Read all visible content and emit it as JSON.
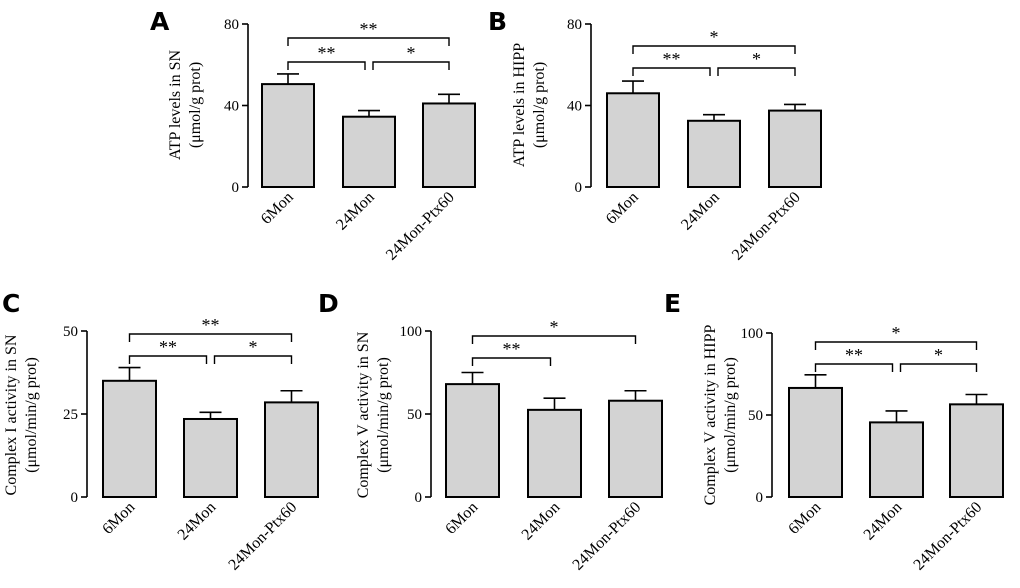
{
  "chart_data": [
    {
      "type": "bar",
      "panel": "A",
      "ylabel": [
        "ATP levels in SN",
        "(μmol/g prot)"
      ],
      "categories": [
        "6Mon",
        "24Mon",
        "24Mon-Ptx60"
      ],
      "values": [
        50.5,
        34.5,
        41
      ],
      "errors": [
        5,
        3,
        4.5
      ],
      "ylim": [
        0,
        80
      ],
      "yticks": [
        "0",
        "40",
        "80"
      ],
      "ytick_values": [
        0,
        40,
        80
      ],
      "significance": [
        {
          "from": 0,
          "to": 2,
          "label": "**",
          "level": 1
        },
        {
          "from": 0,
          "to": 1,
          "label": "**",
          "level": 0
        },
        {
          "from": 1,
          "to": 2,
          "label": "*",
          "level": 0
        }
      ]
    },
    {
      "type": "bar",
      "panel": "B",
      "ylabel": [
        "ATP levels in HIPP",
        "(μmol/g prot)"
      ],
      "categories": [
        "6Mon",
        "24Mon",
        "24Mon-Ptx60"
      ],
      "values": [
        46,
        32.5,
        37.5
      ],
      "errors": [
        6,
        3,
        3
      ],
      "ylim": [
        0,
        80
      ],
      "yticks": [
        "0",
        "40",
        "80"
      ],
      "ytick_values": [
        0,
        40,
        80
      ],
      "significance": [
        {
          "from": 0,
          "to": 2,
          "label": "*",
          "level": 1
        },
        {
          "from": 0,
          "to": 1,
          "label": "**",
          "level": 0
        },
        {
          "from": 1,
          "to": 2,
          "label": "*",
          "level": 0
        }
      ]
    },
    {
      "type": "bar",
      "panel": "C",
      "ylabel": [
        "Complex I activity in SN",
        "(μmol/min/g prot)"
      ],
      "categories": [
        "6Mon",
        "24Mon",
        "24Mon-Ptx60"
      ],
      "values": [
        35,
        23.5,
        28.5
      ],
      "errors": [
        4,
        2,
        3.5
      ],
      "ylim": [
        0,
        50
      ],
      "yticks": [
        "0",
        "25",
        "50"
      ],
      "ytick_values": [
        0,
        25,
        50
      ],
      "significance": [
        {
          "from": 0,
          "to": 2,
          "label": "**",
          "level": 1
        },
        {
          "from": 0,
          "to": 1,
          "label": "**",
          "level": 0
        },
        {
          "from": 1,
          "to": 2,
          "label": "*",
          "level": 0
        }
      ]
    },
    {
      "type": "bar",
      "panel": "D",
      "ylabel": [
        "Complex V activity in SN",
        "(μmol/min/g prot)"
      ],
      "categories": [
        "6Mon",
        "24Mon",
        "24Mon-Ptx60"
      ],
      "values": [
        68,
        52.5,
        58
      ],
      "errors": [
        7,
        7,
        6
      ],
      "ylim": [
        0,
        100
      ],
      "yticks": [
        "0",
        "50",
        "100"
      ],
      "ytick_values": [
        0,
        50,
        100
      ],
      "significance": [
        {
          "from": 0,
          "to": 2,
          "label": "*",
          "level": 1
        },
        {
          "from": 0,
          "to": 1,
          "label": "**",
          "level": 0
        }
      ]
    },
    {
      "type": "bar",
      "panel": "E",
      "ylabel": [
        "Complex V activity in HIPP",
        "(μmol/min/g prot)"
      ],
      "categories": [
        "6Mon",
        "24Mon",
        "24Mon-Ptx60"
      ],
      "values": [
        66.5,
        45.5,
        56.5
      ],
      "errors": [
        8,
        7,
        6
      ],
      "ylim": [
        0,
        100
      ],
      "yticks": [
        "0",
        "50",
        "100"
      ],
      "ytick_values": [
        0,
        50,
        100
      ],
      "significance": [
        {
          "from": 0,
          "to": 2,
          "label": "*",
          "level": 1
        },
        {
          "from": 0,
          "to": 1,
          "label": "**",
          "level": 0
        },
        {
          "from": 1,
          "to": 2,
          "label": "*",
          "level": 0
        }
      ]
    }
  ],
  "colors": {
    "bar_fill": "#d3d3d3",
    "stroke": "#000000"
  }
}
